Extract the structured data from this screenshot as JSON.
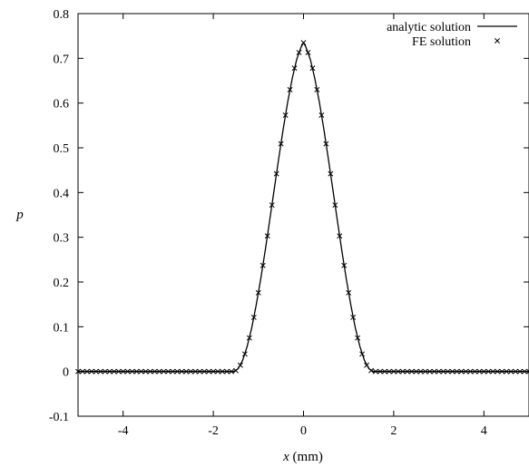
{
  "chart_data": {
    "type": "line",
    "title": "",
    "xlabel_var": "x",
    "xlabel_unit": " (mm)",
    "ylabel": "p",
    "xlim": [
      -5,
      5
    ],
    "ylim": [
      -0.1,
      0.8
    ],
    "x_ticks": [
      -4,
      -2,
      0,
      2,
      4
    ],
    "x_tick_labels": [
      "-4",
      "-2",
      "0",
      "2",
      "4"
    ],
    "y_ticks": [
      -0.1,
      0,
      0.1,
      0.2,
      0.3,
      0.4,
      0.5,
      0.6,
      0.7,
      0.8
    ],
    "y_tick_labels": [
      "-0.1",
      "0",
      "0.1",
      "0.2",
      "0.3",
      "0.4",
      "0.5",
      "0.6",
      "0.7",
      "0.8"
    ],
    "grid": false,
    "legend_position": "top-right",
    "series": [
      {
        "name": "analytic solution",
        "style": "line",
        "color": "#000000",
        "x": [
          -5,
          -1.55,
          -1.45,
          -1.35,
          -1.25,
          -1.15,
          -1.05,
          -0.95,
          -0.85,
          -0.75,
          -0.65,
          -0.55,
          -0.45,
          -0.35,
          -0.25,
          -0.15,
          -0.05,
          0,
          0.05,
          0.15,
          0.25,
          0.35,
          0.45,
          0.55,
          0.65,
          0.75,
          0.85,
          0.95,
          1.05,
          1.15,
          1.25,
          1.35,
          1.45,
          1.55,
          5
        ],
        "y": [
          0,
          0,
          0.006,
          0.025,
          0.056,
          0.097,
          0.148,
          0.206,
          0.27,
          0.338,
          0.407,
          0.476,
          0.542,
          0.603,
          0.655,
          0.698,
          0.726,
          0.735,
          0.726,
          0.698,
          0.655,
          0.603,
          0.542,
          0.476,
          0.407,
          0.338,
          0.27,
          0.206,
          0.148,
          0.097,
          0.056,
          0.025,
          0.006,
          0,
          0
        ]
      },
      {
        "name": "FE solution",
        "style": "markers",
        "marker": "x",
        "color": "#000000",
        "x": [
          -5,
          -4.9,
          -4.8,
          -4.7,
          -4.6,
          -4.5,
          -4.4,
          -4.3,
          -4.2,
          -4.1,
          -4,
          -3.9,
          -3.8,
          -3.7,
          -3.6,
          -3.5,
          -3.4,
          -3.3,
          -3.2,
          -3.1,
          -3,
          -2.9,
          -2.8,
          -2.7,
          -2.6,
          -2.5,
          -2.4,
          -2.3,
          -2.2,
          -2.1,
          -2,
          -1.9,
          -1.8,
          -1.7,
          -1.6,
          -1.5,
          -1.4,
          -1.3,
          -1.2,
          -1.1,
          -1,
          -0.9,
          -0.8,
          -0.7,
          -0.6,
          -0.5,
          -0.4,
          -0.3,
          -0.2,
          -0.1,
          0,
          0.1,
          0.2,
          0.3,
          0.4,
          0.5,
          0.6,
          0.7,
          0.8,
          0.9,
          1,
          1.1,
          1.2,
          1.3,
          1.4,
          1.5,
          1.6,
          1.7,
          1.8,
          1.9,
          2,
          2.1,
          2.2,
          2.3,
          2.4,
          2.5,
          2.6,
          2.7,
          2.8,
          2.9,
          3,
          3.1,
          3.2,
          3.3,
          3.4,
          3.5,
          3.6,
          3.7,
          3.8,
          3.9,
          4,
          4.1,
          4.2,
          4.3,
          4.4,
          4.5,
          4.6,
          4.7,
          4.8,
          4.9,
          5
        ],
        "y": [
          0,
          0,
          0,
          0,
          0,
          0,
          0,
          0,
          0,
          0,
          0,
          0,
          0,
          0,
          0,
          0,
          0,
          0,
          0,
          0,
          0,
          0,
          0,
          0,
          0,
          0,
          0,
          0,
          0,
          0,
          0,
          0,
          0,
          0,
          0,
          0.002,
          0.014,
          0.039,
          0.075,
          0.121,
          0.176,
          0.237,
          0.303,
          0.372,
          0.442,
          0.509,
          0.573,
          0.63,
          0.678,
          0.713,
          0.735,
          0.713,
          0.678,
          0.63,
          0.573,
          0.509,
          0.442,
          0.372,
          0.303,
          0.237,
          0.176,
          0.121,
          0.075,
          0.039,
          0.014,
          0.002,
          0,
          0,
          0,
          0,
          0,
          0,
          0,
          0,
          0,
          0,
          0,
          0,
          0,
          0,
          0,
          0,
          0,
          0,
          0,
          0,
          0,
          0,
          0,
          0,
          0,
          0,
          0,
          0,
          0,
          0,
          0,
          0,
          0,
          0,
          0
        ]
      }
    ]
  }
}
